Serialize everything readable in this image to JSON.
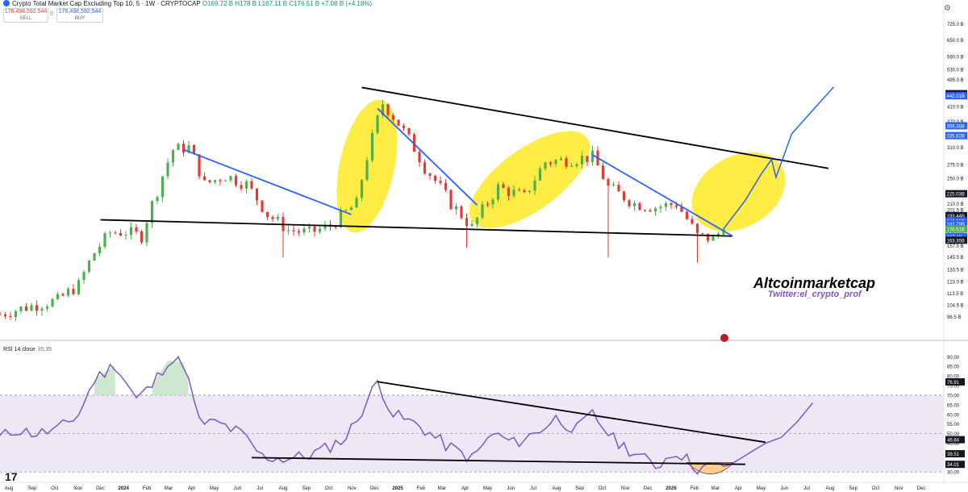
{
  "header": {
    "title": "Crypto Total Market Cap Excluding Top 10, 5 · 1W · CRYPTOCAP",
    "ohlc": "O169.72 B H178 B L167.11 B C176.51 B +7.08 B (+4.18%)",
    "sell_value": "176,498,592,544",
    "sell_label": "SELL",
    "buy_value": "176,498,592,544",
    "buy_label": "BUY",
    "spread": "0"
  },
  "rsi_label": {
    "name": "RSI 14 close",
    "value": "35.35"
  },
  "watermark": {
    "name": "Altcoinmarketcap",
    "handle": "Twitter:el_crypto_prof"
  },
  "tv_logo": "17",
  "colors": {
    "up": "#4caf50",
    "down": "#e53935",
    "trend_blue": "#2962ff",
    "rsi": "#7e57c2",
    "highlight": "#ffeb3b",
    "rsi_band": "#ede7f6",
    "ob_fill": "#c8e6c9",
    "os_fill": "#ffcc80"
  },
  "chart_data": [
    {
      "type": "candlestick",
      "title": "Crypto Total Market Cap Excluding Top 10",
      "interval": "1W",
      "unit": "USD billions",
      "y_scale": "log",
      "ylim": [
        90,
        800
      ],
      "xlim": [
        "2023-07-20",
        "2026-12-31"
      ],
      "price_axis_ticks": [
        96.5,
        104.5,
        113.5,
        123.0,
        133.5,
        145.5,
        157.5,
        171.0,
        186.0,
        201.5,
        210.0,
        225.0,
        250.0,
        275.0,
        310.0,
        370.0,
        410.0,
        448.4,
        495.0,
        530.0,
        580.0,
        650.0,
        725.0
      ],
      "price_axis_labels": [
        "96.5 B",
        "104.5 B",
        "113.5 B",
        "123.0 B",
        "133.5 B",
        "145.5 B",
        "157.5 B",
        "171.0 B",
        "186.0 B",
        "201.5 B",
        "210.0 B",
        "225.0 B",
        "250.0 B",
        "275.0 B",
        "310.0 B",
        "370.0 B",
        "410.0 B",
        "448.4 B",
        "495.0 B",
        "530.0 B",
        "580.0 B",
        "650.0 B",
        "725.0 B"
      ],
      "price_badges": [
        {
          "text": "448.41B",
          "value": 448.41,
          "color": "#131722"
        },
        {
          "text": "442.01B",
          "value": 442.01,
          "color": "#2962ff"
        },
        {
          "text": "359.36B",
          "value": 359.36,
          "color": "#2962ff"
        },
        {
          "text": "335.82B",
          "value": 335.82,
          "color": "#2962ff"
        },
        {
          "text": "225.03B",
          "value": 225.03,
          "color": "#131722"
        },
        {
          "text": "193.44B",
          "value": 193.44,
          "color": "#131722"
        },
        {
          "text": "186.35B",
          "value": 186.35,
          "color": "#2962ff"
        },
        {
          "text": "182.79B",
          "value": 182.79,
          "color": "#2962ff"
        },
        {
          "text": "176.51B",
          "value": 176.51,
          "color": "#4caf50"
        },
        {
          "text": "167.4B",
          "value": 167.4,
          "color": "#2962ff"
        },
        {
          "text": "163.35B",
          "value": 163.35,
          "color": "#131722"
        }
      ],
      "anchors": [
        [
          "2023-07-20",
          98
        ],
        [
          "2023-08-24",
          103
        ],
        [
          "2023-10-05",
          108
        ],
        [
          "2023-11-02",
          120
        ],
        [
          "2023-11-23",
          150
        ],
        [
          "2023-12-14",
          172
        ],
        [
          "2024-01-04",
          173
        ],
        [
          "2024-01-25",
          168
        ],
        [
          "2024-02-15",
          230
        ],
        [
          "2024-03-07",
          305
        ],
        [
          "2024-03-28",
          310
        ],
        [
          "2024-04-18",
          240
        ],
        [
          "2024-05-16",
          255
        ],
        [
          "2024-06-13",
          240
        ],
        [
          "2024-07-11",
          195
        ],
        [
          "2024-08-08",
          175
        ],
        [
          "2024-09-05",
          172
        ],
        [
          "2024-10-03",
          180
        ],
        [
          "2024-11-07",
          210
        ],
        [
          "2024-11-28",
          330
        ],
        [
          "2024-12-12",
          420
        ],
        [
          "2025-01-02",
          365
        ],
        [
          "2025-02-06",
          270
        ],
        [
          "2025-03-13",
          210
        ],
        [
          "2025-04-10",
          178
        ],
        [
          "2025-05-15",
          235
        ],
        [
          "2025-06-19",
          220
        ],
        [
          "2025-07-17",
          280
        ],
        [
          "2025-08-21",
          285
        ],
        [
          "2025-09-18",
          290
        ],
        [
          "2025-10-09",
          235
        ],
        [
          "2025-11-13",
          210
        ],
        [
          "2025-12-11",
          205
        ],
        [
          "2026-01-08",
          210
        ],
        [
          "2026-02-05",
          168
        ],
        [
          "2026-02-26",
          165
        ],
        [
          "2026-03-12",
          176.51
        ]
      ],
      "spikes": [
        [
          "2024-08-01",
          145
        ],
        [
          "2025-04-03",
          155
        ],
        [
          "2025-10-09",
          145
        ],
        [
          "2026-02-05",
          140
        ]
      ],
      "projection": [
        [
          "2026-03-12",
          176.51
        ],
        [
          "2026-04-10",
          215
        ],
        [
          "2026-04-30",
          255
        ],
        [
          "2026-05-15",
          285
        ],
        [
          "2026-05-21",
          252
        ],
        [
          "2026-06-11",
          340
        ],
        [
          "2026-07-09",
          400
        ],
        [
          "2026-08-06",
          470
        ]
      ],
      "trendlines": [
        {
          "color": "#000000",
          "points": [
            [
              "2023-12-01",
              188
            ],
            [
              "2026-03-24",
              168
            ]
          ]
        },
        {
          "color": "#000000",
          "points": [
            [
              "2024-11-14",
              468
            ],
            [
              "2026-07-30",
              268
            ]
          ]
        },
        {
          "color": "#2962ff",
          "points": [
            [
              "2024-03-21",
              305
            ],
            [
              "2024-10-31",
              195
            ]
          ]
        },
        {
          "color": "#2962ff",
          "points": [
            [
              "2024-12-05",
              405
            ],
            [
              "2025-04-17",
              208
            ]
          ]
        },
        {
          "color": "#2962ff",
          "points": [
            [
              "2025-09-18",
              294
            ],
            [
              "2026-03-24",
              168
            ]
          ]
        }
      ],
      "highlights": [
        {
          "center": [
            "2024-11-21",
            272
          ],
          "rx": 34,
          "ry": 84,
          "rot": 12
        },
        {
          "center": [
            "2025-06-26",
            248
          ],
          "rx": 88,
          "ry": 38,
          "rot": -36
        },
        {
          "center": [
            "2026-04-01",
            228
          ],
          "rx": 62,
          "ry": 44,
          "rot": -30
        }
      ]
    },
    {
      "type": "line",
      "title": "RSI 14 close",
      "ylim": [
        28,
        96
      ],
      "axis_ticks": [
        30,
        35,
        40,
        45,
        50,
        55,
        60,
        65,
        70,
        75,
        80,
        85,
        90
      ],
      "axis_labels": [
        "30.00",
        "35.00",
        "40.00",
        "45.00",
        "50.00",
        "55.00",
        "60.00",
        "65.00",
        "70.00",
        "75.00",
        "80.00",
        "85.00",
        "90.00"
      ],
      "bands": {
        "overbought": 70,
        "middle": 50,
        "oversold": 30
      },
      "badges": [
        {
          "text": "76.91",
          "value": 76.91,
          "color": "#131722"
        },
        {
          "text": "46.84",
          "value": 46.84,
          "color": "#131722"
        },
        {
          "text": "39.51",
          "value": 39.51,
          "color": "#131722"
        },
        {
          "text": "34.01",
          "value": 34.01,
          "color": "#131722"
        }
      ],
      "anchors": [
        [
          "2023-07-20",
          48
        ],
        [
          "2023-08-10",
          52
        ],
        [
          "2023-09-07",
          50
        ],
        [
          "2023-10-05",
          52
        ],
        [
          "2023-11-02",
          60
        ],
        [
          "2023-11-23",
          78
        ],
        [
          "2023-12-21",
          86
        ],
        [
          "2024-01-18",
          68
        ],
        [
          "2024-02-08",
          75
        ],
        [
          "2024-02-29",
          88
        ],
        [
          "2024-03-21",
          87
        ],
        [
          "2024-04-11",
          56
        ],
        [
          "2024-05-09",
          55
        ],
        [
          "2024-06-06",
          50
        ],
        [
          "2024-07-04",
          38
        ],
        [
          "2024-08-01",
          37
        ],
        [
          "2024-08-29",
          38
        ],
        [
          "2024-09-26",
          42
        ],
        [
          "2024-10-24",
          48
        ],
        [
          "2024-11-14",
          62
        ],
        [
          "2024-12-05",
          77
        ],
        [
          "2024-12-26",
          60
        ],
        [
          "2025-01-30",
          54
        ],
        [
          "2025-03-06",
          44
        ],
        [
          "2025-04-10",
          37
        ],
        [
          "2025-05-08",
          50
        ],
        [
          "2025-06-05",
          45
        ],
        [
          "2025-07-03",
          50
        ],
        [
          "2025-07-31",
          58
        ],
        [
          "2025-08-28",
          52
        ],
        [
          "2025-09-18",
          60
        ],
        [
          "2025-10-16",
          47
        ],
        [
          "2025-11-13",
          40
        ],
        [
          "2025-12-11",
          33
        ],
        [
          "2026-01-08",
          41
        ],
        [
          "2026-02-05",
          32
        ],
        [
          "2026-03-05",
          33
        ],
        [
          "2026-03-26",
          35
        ],
        [
          "2026-04-16",
          40
        ],
        [
          "2026-05-07",
          45
        ],
        [
          "2026-05-28",
          48
        ],
        [
          "2026-06-18",
          56
        ],
        [
          "2026-07-09",
          66
        ]
      ],
      "trendlines": [
        {
          "color": "#000000",
          "points": [
            [
              "2024-12-05",
              77
            ],
            [
              "2026-05-07",
              45.5
            ]
          ]
        },
        {
          "color": "#000000",
          "points": [
            [
              "2024-06-20",
              37.5
            ],
            [
              "2026-04-10",
              34
            ]
          ]
        }
      ],
      "ob_fill_segments": [
        [
          "2023-11-23",
          "2023-12-21"
        ],
        [
          "2024-02-08",
          "2024-03-28"
        ]
      ],
      "os_highlight": {
        "from": "2026-01-22",
        "to": "2026-03-26",
        "level": 35
      }
    }
  ],
  "time_axis": {
    "ticks": [
      [
        "2023-08-01",
        "Aug"
      ],
      [
        "2023-09-01",
        "Sep"
      ],
      [
        "2023-10-01",
        "Oct"
      ],
      [
        "2023-11-01",
        "Nov"
      ],
      [
        "2023-12-01",
        "Dec"
      ],
      [
        "2024-01-01",
        "2024"
      ],
      [
        "2024-02-01",
        "Feb"
      ],
      [
        "2024-03-01",
        "Mar"
      ],
      [
        "2024-04-01",
        "Apr"
      ],
      [
        "2024-05-01",
        "May"
      ],
      [
        "2024-06-01",
        "Jun"
      ],
      [
        "2024-07-01",
        "Jul"
      ],
      [
        "2024-08-01",
        "Aug"
      ],
      [
        "2024-09-01",
        "Sep"
      ],
      [
        "2024-10-01",
        "Oct"
      ],
      [
        "2024-11-01",
        "Nov"
      ],
      [
        "2024-12-01",
        "Dec"
      ],
      [
        "2025-01-01",
        "2025"
      ],
      [
        "2025-02-01",
        "Feb"
      ],
      [
        "2025-03-01",
        "Mar"
      ],
      [
        "2025-04-01",
        "Apr"
      ],
      [
        "2025-05-01",
        "May"
      ],
      [
        "2025-06-01",
        "Jun"
      ],
      [
        "2025-07-01",
        "Jul"
      ],
      [
        "2025-08-01",
        "Aug"
      ],
      [
        "2025-09-01",
        "Sep"
      ],
      [
        "2025-10-01",
        "Oct"
      ],
      [
        "2025-11-01",
        "Nov"
      ],
      [
        "2025-12-01",
        "Dec"
      ],
      [
        "2026-01-01",
        "2026"
      ],
      [
        "2026-02-01",
        "Feb"
      ],
      [
        "2026-03-01",
        "Mar"
      ],
      [
        "2026-04-01",
        "Apr"
      ],
      [
        "2026-05-01",
        "May"
      ],
      [
        "2026-06-01",
        "Jun"
      ],
      [
        "2026-07-01",
        "Jul"
      ],
      [
        "2026-08-01",
        "Aug"
      ],
      [
        "2026-09-01",
        "Sep"
      ],
      [
        "2026-10-01",
        "Oct"
      ],
      [
        "2026-11-01",
        "Nov"
      ],
      [
        "2026-12-01",
        "Dec"
      ]
    ]
  }
}
